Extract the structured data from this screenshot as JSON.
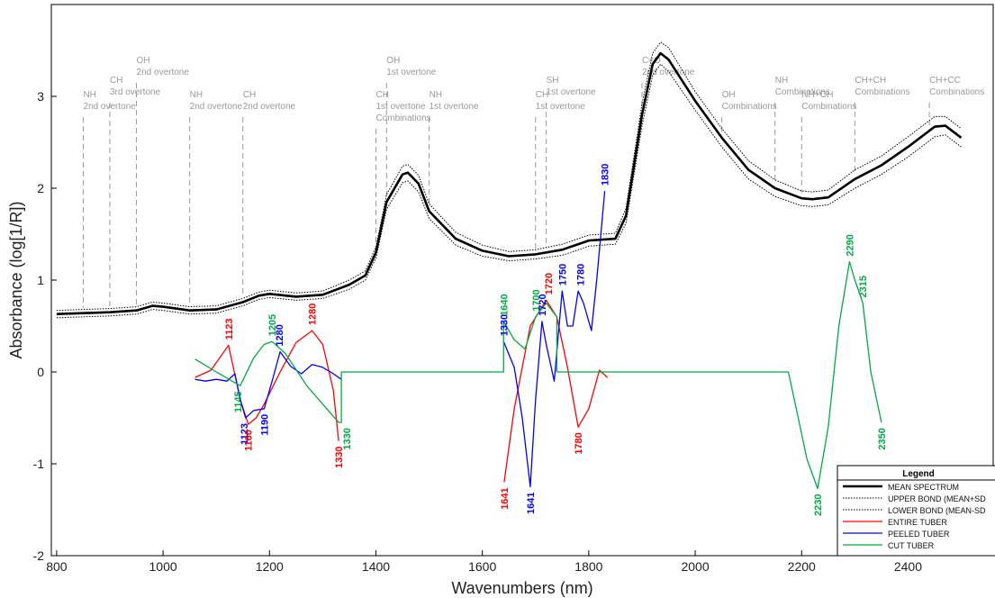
{
  "chart_data": {
    "type": "line",
    "xlabel": "Wavenumbers (nm)",
    "ylabel": "Absorbance (log[1/R])",
    "xlim": [
      790,
      2560
    ],
    "ylim": [
      -2,
      4
    ],
    "x_ticks": [
      800,
      1000,
      1200,
      1400,
      1600,
      1800,
      2000,
      2200,
      2400
    ],
    "y_ticks": [
      -2,
      -1,
      0,
      1,
      2,
      3
    ],
    "grid": false,
    "legend": {
      "title": "Legend",
      "placement": "bottom-right",
      "entries": [
        {
          "label": "MEAN SPECTRUM",
          "style": "thick-solid",
          "color": "#000000"
        },
        {
          "label": "UPPER BOND (MEAN+SD",
          "style": "dotted",
          "color": "#000000"
        },
        {
          "label": "LOWER BOND (MEAN-SD",
          "style": "dotted",
          "color": "#000000"
        },
        {
          "label": "ENTIRE TUBER",
          "style": "solid",
          "color": "#ff0000"
        },
        {
          "label": "PEELED TUBER",
          "style": "solid",
          "color": "#0000ff"
        },
        {
          "label": "CUT TUBER",
          "style": "solid",
          "color": "#00aa44"
        }
      ]
    },
    "series": [
      {
        "name": "MEAN SPECTRUM",
        "color": "#000000",
        "style": "thick",
        "x": [
          800,
          850,
          900,
          950,
          980,
          1000,
          1050,
          1100,
          1150,
          1180,
          1200,
          1250,
          1300,
          1350,
          1380,
          1400,
          1420,
          1450,
          1460,
          1480,
          1500,
          1550,
          1600,
          1650,
          1700,
          1750,
          1800,
          1850,
          1870,
          1900,
          1920,
          1935,
          1950,
          2000,
          2050,
          2100,
          2150,
          2200,
          2220,
          2250,
          2300,
          2350,
          2400,
          2450,
          2470,
          2500
        ],
        "y": [
          0.63,
          0.64,
          0.65,
          0.67,
          0.72,
          0.71,
          0.67,
          0.68,
          0.76,
          0.83,
          0.85,
          0.82,
          0.84,
          0.95,
          1.05,
          1.3,
          1.85,
          2.15,
          2.17,
          2.05,
          1.75,
          1.45,
          1.32,
          1.26,
          1.28,
          1.33,
          1.43,
          1.45,
          1.7,
          2.8,
          3.35,
          3.47,
          3.4,
          2.95,
          2.55,
          2.2,
          2.0,
          1.89,
          1.88,
          1.9,
          2.1,
          2.25,
          2.45,
          2.67,
          2.68,
          2.55
        ]
      },
      {
        "name": "UPPER BOND (MEAN+SD",
        "color": "#000000",
        "style": "dotted",
        "x": [
          800,
          850,
          900,
          950,
          980,
          1000,
          1050,
          1100,
          1150,
          1180,
          1200,
          1250,
          1300,
          1350,
          1380,
          1400,
          1420,
          1450,
          1460,
          1480,
          1500,
          1550,
          1600,
          1650,
          1700,
          1750,
          1800,
          1850,
          1870,
          1900,
          1920,
          1935,
          1950,
          2000,
          2050,
          2100,
          2150,
          2200,
          2220,
          2250,
          2300,
          2350,
          2400,
          2450,
          2470,
          2500
        ],
        "y": [
          0.67,
          0.68,
          0.69,
          0.71,
          0.76,
          0.75,
          0.71,
          0.72,
          0.8,
          0.87,
          0.89,
          0.86,
          0.88,
          1.0,
          1.1,
          1.36,
          1.93,
          2.24,
          2.26,
          2.14,
          1.83,
          1.52,
          1.38,
          1.31,
          1.33,
          1.39,
          1.49,
          1.51,
          1.78,
          2.92,
          3.47,
          3.59,
          3.53,
          3.05,
          2.65,
          2.3,
          2.09,
          1.97,
          1.96,
          1.98,
          2.2,
          2.35,
          2.56,
          2.78,
          2.78,
          2.65
        ]
      },
      {
        "name": "LOWER BOND (MEAN-SD",
        "color": "#000000",
        "style": "dotted",
        "x": [
          800,
          850,
          900,
          950,
          980,
          1000,
          1050,
          1100,
          1150,
          1180,
          1200,
          1250,
          1300,
          1350,
          1380,
          1400,
          1420,
          1450,
          1460,
          1480,
          1500,
          1550,
          1600,
          1650,
          1700,
          1750,
          1800,
          1850,
          1870,
          1900,
          1920,
          1935,
          1950,
          2000,
          2050,
          2100,
          2150,
          2200,
          2220,
          2250,
          2300,
          2350,
          2400,
          2450,
          2470,
          2500
        ],
        "y": [
          0.59,
          0.6,
          0.61,
          0.63,
          0.68,
          0.67,
          0.63,
          0.64,
          0.72,
          0.79,
          0.81,
          0.78,
          0.8,
          0.9,
          1.0,
          1.24,
          1.77,
          2.06,
          2.08,
          1.96,
          1.67,
          1.38,
          1.26,
          1.21,
          1.23,
          1.27,
          1.37,
          1.39,
          1.62,
          2.68,
          3.23,
          3.35,
          3.27,
          2.85,
          2.45,
          2.1,
          1.91,
          1.81,
          1.8,
          1.82,
          2.0,
          2.15,
          2.34,
          2.56,
          2.58,
          2.45
        ]
      },
      {
        "name": "ENTIRE TUBER",
        "color": "#ff0000",
        "style": "solid",
        "x": [
          1060,
          1090,
          1123,
          1145,
          1160,
          1175,
          1190,
          1220,
          1250,
          1280,
          1300,
          1320,
          1330,
          null,
          1641,
          1660,
          1690,
          1720,
          1740,
          1760,
          1780,
          1800,
          1820,
          1835
        ],
        "y": [
          -0.06,
          0.02,
          0.29,
          -0.3,
          -0.57,
          -0.5,
          -0.35,
          0.0,
          0.32,
          0.45,
          0.3,
          -0.2,
          -0.75,
          null,
          -1.2,
          -0.4,
          0.5,
          0.78,
          0.6,
          0.05,
          -0.6,
          -0.4,
          0.02,
          -0.06
        ]
      },
      {
        "name": "PEELED TUBER",
        "color": "#0000ff",
        "style": "solid",
        "x": [
          1060,
          1080,
          1100,
          1120,
          1135,
          1145,
          1155,
          1170,
          1190,
          1205,
          1220,
          1240,
          1260,
          1280,
          1300,
          1320,
          1335,
          null,
          1640,
          1660,
          1675,
          1690,
          1700,
          1712,
          1720,
          1735,
          1750,
          1760,
          1770,
          1780,
          1790,
          1805,
          1815,
          1830
        ],
        "y": [
          -0.08,
          -0.1,
          -0.08,
          -0.1,
          -0.02,
          -0.3,
          -0.5,
          -0.42,
          -0.4,
          -0.1,
          0.22,
          0.06,
          -0.02,
          0.08,
          0.05,
          -0.02,
          -0.08,
          null,
          0.33,
          0.05,
          -0.5,
          -1.25,
          -0.3,
          0.55,
          0.3,
          -0.1,
          0.88,
          0.5,
          0.5,
          0.88,
          0.75,
          0.45,
          1.0,
          1.97
        ]
      },
      {
        "name": "CUT TUBER",
        "color": "#00aa44",
        "style": "solid",
        "x": [
          1060,
          1100,
          1130,
          1145,
          1170,
          1190,
          1205,
          1230,
          1270,
          1300,
          1330,
          1335,
          1335,
          1640,
          1640,
          1660,
          1680,
          1700,
          1720,
          1740,
          1740,
          2175,
          2190,
          2210,
          2230,
          2250,
          2270,
          2290,
          2300,
          2315,
          2330,
          2350
        ],
        "y": [
          0.14,
          0.0,
          -0.1,
          -0.15,
          0.15,
          0.3,
          0.33,
          0.2,
          -0.15,
          -0.35,
          -0.55,
          -0.55,
          0.0,
          0.0,
          0.55,
          0.35,
          0.25,
          0.6,
          0.75,
          0.6,
          0.0,
          0.0,
          -0.4,
          -0.95,
          -1.27,
          -0.6,
          0.5,
          1.2,
          1.0,
          0.75,
          0.0,
          -0.55
        ]
      }
    ],
    "vlines": [
      {
        "x": 850,
        "label": [
          "NH",
          "2nd overtone"
        ]
      },
      {
        "x": 900,
        "label": [
          "CH",
          "3rd overtone"
        ]
      },
      {
        "x": 950,
        "label": [
          "OH",
          "2nd overtone"
        ]
      },
      {
        "x": 1050,
        "label": [
          "NH",
          "2nd overtone"
        ]
      },
      {
        "x": 1150,
        "label": [
          "CH",
          "2nd overtone"
        ]
      },
      {
        "x": 1400,
        "label": [
          "CH",
          "1st overtone",
          "Combinations"
        ]
      },
      {
        "x": 1420,
        "label": [
          "OH",
          "1st overtone"
        ]
      },
      {
        "x": 1500,
        "label": [
          "NH",
          "1st overtone"
        ]
      },
      {
        "x": 1700,
        "label": [
          "CH",
          "1st overtone"
        ]
      },
      {
        "x": 1720,
        "label": [
          "SH",
          "1st overtone"
        ]
      },
      {
        "x": 1900,
        "label": [
          "C=O",
          "2nd overtone"
        ]
      },
      {
        "x": 2050,
        "label": [
          "OH",
          "Combinations"
        ]
      },
      {
        "x": 2150,
        "label": [
          "NH",
          "Combinations"
        ]
      },
      {
        "x": 2200,
        "label": [
          "NH+OH",
          "Combinations"
        ]
      },
      {
        "x": 2300,
        "label": [
          "CH+CH",
          "Combinations"
        ]
      },
      {
        "x": 2440,
        "label": [
          "CH+CC",
          "Combinations"
        ]
      }
    ],
    "annotations": [
      {
        "text": "1123",
        "x": 1123,
        "y": 0.29,
        "color": "#ff0000"
      },
      {
        "text": "1205",
        "x": 1205,
        "y": 0.33,
        "color": "#00aa44"
      },
      {
        "text": "1280",
        "x": 1218,
        "y": 0.22,
        "color": "#0000ff"
      },
      {
        "text": "1280",
        "x": 1280,
        "y": 0.45,
        "color": "#ff0000"
      },
      {
        "text": "1145",
        "x": 1140,
        "y": -0.15,
        "color": "#00aa44"
      },
      {
        "text": "1123",
        "x": 1152,
        "y": -0.5,
        "color": "#0000ff"
      },
      {
        "text": "1160",
        "x": 1160,
        "y": -0.57,
        "color": "#ff0000"
      },
      {
        "text": "1190",
        "x": 1190,
        "y": -0.4,
        "color": "#0000ff"
      },
      {
        "text": "1330",
        "x": 1330,
        "y": -0.75,
        "color": "#ff0000"
      },
      {
        "text": "1330",
        "x": 1345,
        "y": -0.55,
        "color": "#00aa44"
      },
      {
        "text": "1330",
        "x": 1640,
        "y": 0.33,
        "color": "#0000ff"
      },
      {
        "text": "1640",
        "x": 1640,
        "y": 0.55,
        "color": "#00aa44"
      },
      {
        "text": "1700",
        "x": 1700,
        "y": 0.6,
        "color": "#00aa44"
      },
      {
        "text": "1720",
        "x": 1712,
        "y": 0.55,
        "color": "#0000ff"
      },
      {
        "text": "1720",
        "x": 1724,
        "y": 0.78,
        "color": "#ff0000"
      },
      {
        "text": "1750",
        "x": 1750,
        "y": 0.88,
        "color": "#0000ff"
      },
      {
        "text": "1780",
        "x": 1784,
        "y": 0.88,
        "color": "#0000ff"
      },
      {
        "text": "1830",
        "x": 1830,
        "y": 1.97,
        "color": "#0000ff"
      },
      {
        "text": "1641",
        "x": 1641,
        "y": -1.2,
        "color": "#ff0000"
      },
      {
        "text": "1641",
        "x": 1690,
        "y": -1.25,
        "color": "#0000ff"
      },
      {
        "text": "1780",
        "x": 1780,
        "y": -0.6,
        "color": "#ff0000"
      },
      {
        "text": "2290",
        "x": 2290,
        "y": 1.2,
        "color": "#00aa44"
      },
      {
        "text": "2315",
        "x": 2315,
        "y": 0.75,
        "color": "#00aa44"
      },
      {
        "text": "2230",
        "x": 2230,
        "y": -1.27,
        "color": "#00aa44"
      },
      {
        "text": "2350",
        "x": 2350,
        "y": -0.55,
        "color": "#00aa44"
      }
    ]
  }
}
